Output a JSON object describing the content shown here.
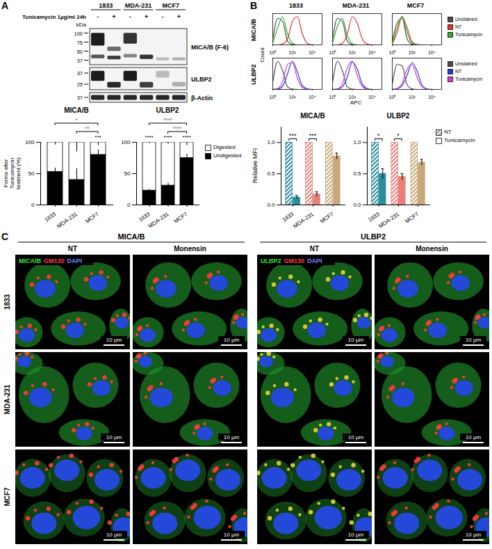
{
  "panel_letters": [
    "A",
    "B",
    "C"
  ],
  "blot": {
    "treatment": "Tunicamycin 1µg/ml 24h",
    "cell_lines": [
      "1833",
      "MDA-231",
      "MCF7"
    ],
    "lanes": [
      "-",
      "+",
      "-",
      "+",
      "-",
      "+"
    ],
    "size_label": "kDa",
    "strips": [
      {
        "label": "MICA/B (F-6)",
        "markers": [
          100,
          75,
          50,
          37
        ]
      },
      {
        "label": "ULBP2",
        "markers": [
          37,
          25
        ]
      },
      {
        "label": "β-Actin",
        "markers": [
          37
        ]
      }
    ]
  },
  "chart_data": [
    {
      "type": "bar",
      "stacked": true,
      "title": "MICA/B",
      "ylabel": "Forms after Tunicamycin teatment (%)",
      "categories": [
        "1833",
        "MDA-231",
        "MCF7"
      ],
      "ylim": [
        0,
        100
      ],
      "yticks": [
        0,
        50,
        100
      ],
      "series": [
        {
          "name": "Undigested",
          "color": "#000000",
          "values": [
            53,
            40,
            80
          ],
          "errors": [
            6,
            18,
            8
          ]
        },
        {
          "name": "Digested",
          "color": "#ffffff",
          "values": [
            47,
            60,
            20
          ],
          "errors": [
            4,
            15,
            5
          ]
        }
      ],
      "significance": [
        {
          "category": "MCF7",
          "label": "***"
        }
      ],
      "brackets": [
        {
          "from": "1833",
          "to": "MCF7",
          "label": "°"
        },
        {
          "from": "MDA-231",
          "to": "MCF7",
          "label": "°°"
        }
      ]
    },
    {
      "type": "bar",
      "stacked": true,
      "title": "ULBP2",
      "legend": "right",
      "categories": [
        "1833",
        "MDA-231",
        "MCF7"
      ],
      "ylim": [
        0,
        100
      ],
      "yticks": [
        0,
        50,
        100
      ],
      "series": [
        {
          "name": "Undigested",
          "color": "#000000",
          "values": [
            23,
            31,
            75
          ],
          "errors": [
            2,
            4,
            6
          ]
        },
        {
          "name": "Digested",
          "color": "#ffffff",
          "values": [
            77,
            69,
            25
          ],
          "errors": [
            2,
            3,
            5
          ]
        }
      ],
      "significance": [
        {
          "category": "1833",
          "label": "****"
        },
        {
          "category": "MDA-231",
          "label": "****"
        },
        {
          "category": "MCF7",
          "label": "****"
        }
      ],
      "brackets": [
        {
          "from": "1833",
          "to": "MCF7",
          "label": "°°°°"
        },
        {
          "from": "MDA-231",
          "to": "MCF7",
          "label": "°°°°"
        }
      ]
    },
    {
      "type": "line",
      "xlabel": "APC",
      "ylabel": "Count",
      "legend": "right",
      "tick_labels": "x",
      "columns": [
        "1833",
        "MDA-231",
        "MCF7"
      ],
      "x": [
        0,
        0.5,
        1,
        1.5,
        2,
        2.5,
        3,
        3.5,
        4,
        4.5,
        5
      ],
      "xlim": [
        0,
        5
      ],
      "xticks": [
        {
          "value": 0,
          "label": "10⁰"
        },
        {
          "value": 2,
          "label": "10²"
        },
        {
          "value": 4,
          "label": "10⁴"
        }
      ],
      "ylim": [
        0,
        100
      ],
      "rows": [
        {
          "title": "MICA/B",
          "panels": [
            {
              "column": "1833",
              "series": [
                {
                  "name": "Unstained",
                  "color": "#4d4d4d",
                  "values": [
                    15,
                    85,
                    75,
                    12,
                    1,
                    0,
                    0,
                    0,
                    0,
                    0,
                    0
                  ]
                },
                {
                  "name": "NT",
                  "color": "#e8322b",
                  "values": [
                    0,
                    0,
                    3,
                    20,
                    75,
                    90,
                    35,
                    5,
                    0,
                    0,
                    0
                  ]
                },
                {
                  "name": "Tunicamycin",
                  "color": "#2bb02b",
                  "values": [
                    5,
                    55,
                    90,
                    35,
                    5,
                    0,
                    0,
                    0,
                    0,
                    0,
                    0
                  ]
                }
              ]
            },
            {
              "column": "MDA-231",
              "series": [
                {
                  "name": "Unstained",
                  "color": "#4d4d4d",
                  "values": [
                    15,
                    85,
                    75,
                    12,
                    1,
                    0,
                    0,
                    0,
                    0,
                    0,
                    0
                  ]
                },
                {
                  "name": "NT",
                  "color": "#e8322b",
                  "values": [
                    0,
                    0,
                    5,
                    35,
                    90,
                    70,
                    20,
                    3,
                    0,
                    0,
                    0
                  ]
                },
                {
                  "name": "Tunicamycin",
                  "color": "#2bb02b",
                  "values": [
                    5,
                    60,
                    85,
                    30,
                    4,
                    0,
                    0,
                    0,
                    0,
                    0,
                    0
                  ]
                }
              ]
            },
            {
              "column": "MCF7",
              "series": [
                {
                  "name": "Unstained",
                  "color": "#4d4d4d",
                  "values": [
                    10,
                    70,
                    85,
                    20,
                    2,
                    0,
                    0,
                    0,
                    0,
                    0,
                    0
                  ]
                },
                {
                  "name": "NT",
                  "color": "#e8322b",
                  "values": [
                    3,
                    40,
                    90,
                    55,
                    10,
                    1,
                    0,
                    0,
                    0,
                    0,
                    0
                  ]
                },
                {
                  "name": "Tunicamycin",
                  "color": "#2bb02b",
                  "values": [
                    5,
                    55,
                    92,
                    40,
                    6,
                    0,
                    0,
                    0,
                    0,
                    0,
                    0
                  ]
                }
              ]
            }
          ]
        },
        {
          "title": "ULBP2",
          "panels": [
            {
              "column": "1833",
              "series": [
                {
                  "name": "Unstained",
                  "color": "#4d4d4d",
                  "values": [
                    20,
                    90,
                    60,
                    8,
                    1,
                    0,
                    0,
                    0,
                    0,
                    0,
                    0
                  ]
                },
                {
                  "name": "NT",
                  "color": "#2a3cd6",
                  "values": [
                    0,
                    1,
                    10,
                    50,
                    90,
                    55,
                    12,
                    2,
                    0,
                    0,
                    0
                  ]
                },
                {
                  "name": "Tunicamycin",
                  "color": "#d63ad6",
                  "values": [
                    0,
                    3,
                    25,
                    80,
                    85,
                    35,
                    6,
                    1,
                    0,
                    0,
                    0
                  ]
                }
              ]
            },
            {
              "column": "MDA-231",
              "series": [
                {
                  "name": "Unstained",
                  "color": "#4d4d4d",
                  "values": [
                    20,
                    90,
                    60,
                    8,
                    1,
                    0,
                    0,
                    0,
                    0,
                    0,
                    0
                  ]
                },
                {
                  "name": "NT",
                  "color": "#2a3cd6",
                  "values": [
                    0,
                    1,
                    8,
                    40,
                    88,
                    65,
                    18,
                    3,
                    0,
                    0,
                    0
                  ]
                },
                {
                  "name": "Tunicamycin",
                  "color": "#d63ad6",
                  "values": [
                    0,
                    2,
                    18,
                    70,
                    90,
                    45,
                    10,
                    1,
                    0,
                    0,
                    0
                  ]
                }
              ]
            },
            {
              "column": "MCF7",
              "series": [
                {
                  "name": "Unstained",
                  "color": "#4d4d4d",
                  "values": [
                    15,
                    80,
                    75,
                    15,
                    2,
                    0,
                    0,
                    0,
                    0,
                    0,
                    0
                  ]
                },
                {
                  "name": "NT",
                  "color": "#2a3cd6",
                  "values": [
                    0,
                    2,
                    12,
                    45,
                    85,
                    60,
                    15,
                    2,
                    0,
                    0,
                    0
                  ]
                },
                {
                  "name": "Tunicamycin",
                  "color": "#d63ad6",
                  "values": [
                    0,
                    3,
                    20,
                    65,
                    80,
                    40,
                    8,
                    1,
                    0,
                    0,
                    0
                  ]
                }
              ]
            }
          ]
        }
      ]
    },
    {
      "type": "bar",
      "title": "MICA/B",
      "ylabel": "Relative MFI",
      "categories": [
        "1833",
        "MDA-231",
        "MCF7"
      ],
      "colors": [
        "#2a8c9c",
        "#e8807a",
        "#c8a878"
      ],
      "ylim": [
        0,
        1.25
      ],
      "yticks": [
        {
          "value": 0,
          "label": "0.0"
        },
        {
          "value": 0.5,
          "label": "0.5"
        },
        {
          "value": 1,
          "label": "1.0"
        }
      ],
      "series": [
        {
          "name": "NT",
          "color": "#999999",
          "values": [
            1,
            1,
            1
          ]
        },
        {
          "name": "Tunicamycin",
          "color": "#ffffff",
          "values": [
            0.12,
            0.17,
            0.78
          ],
          "errors": [
            0.03,
            0.04,
            0.05
          ]
        }
      ],
      "significance": [
        {
          "category": "1833",
          "label": "***"
        },
        {
          "category": "MDA-231",
          "label": "***"
        }
      ]
    },
    {
      "type": "bar",
      "title": "ULBP2",
      "legend": "right",
      "categories": [
        "1833",
        "MDA-231",
        "MCF7"
      ],
      "colors": [
        "#2a8c9c",
        "#e8807a",
        "#c8a878"
      ],
      "ylim": [
        0,
        1.25
      ],
      "yticks": [
        {
          "value": 0,
          "label": "0.0"
        },
        {
          "value": 0.5,
          "label": "0.5"
        },
        {
          "value": 1,
          "label": "1.0"
        }
      ],
      "series": [
        {
          "name": "NT",
          "color": "#999999",
          "values": [
            1,
            1,
            1
          ]
        },
        {
          "name": "Tunicamycin",
          "color": "#ffffff",
          "values": [
            0.5,
            0.45,
            0.68
          ],
          "errors": [
            0.08,
            0.05,
            0.05
          ]
        }
      ],
      "significance": [
        {
          "category": "1833",
          "label": "*"
        },
        {
          "category": "MDA-231",
          "label": "*"
        }
      ]
    }
  ],
  "microscopy": {
    "groups": [
      {
        "title": "MICA/B",
        "channels": [
          {
            "label": "MICA/B",
            "color": "#39e639"
          },
          {
            "label": "GM130",
            "color": "#ff3b3b"
          },
          {
            "label": "DAPI",
            "color": "#6f8cff"
          }
        ]
      },
      {
        "title": "ULBP2",
        "channels": [
          {
            "label": "ULBP2",
            "color": "#39e639"
          },
          {
            "label": "GM130",
            "color": "#ff3b3b"
          },
          {
            "label": "DAPI",
            "color": "#6f8cff"
          }
        ]
      }
    ],
    "conditions": [
      "NT",
      "Monensin"
    ],
    "rows": [
      "1833",
      "MDA-231",
      "MCF7"
    ],
    "scale_bar": "10 µm"
  }
}
